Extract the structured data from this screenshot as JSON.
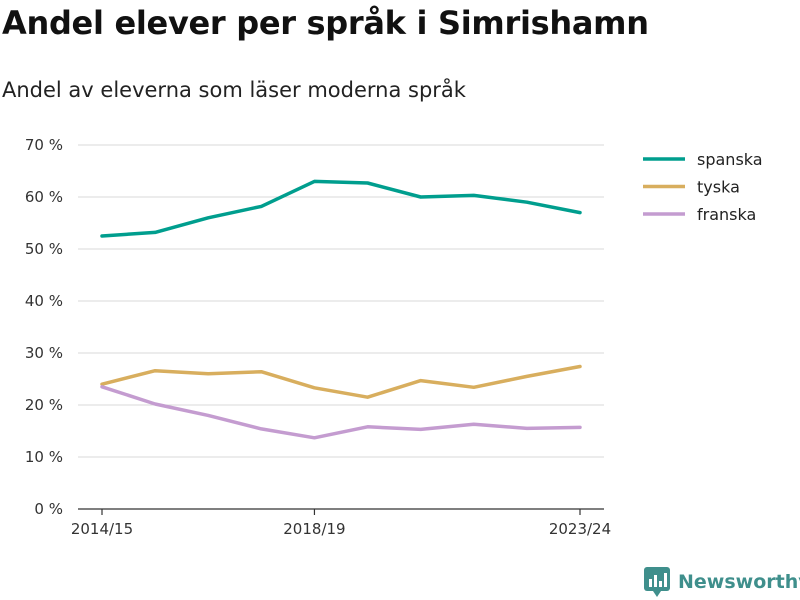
{
  "title": "Andel elever per språk i Simrishamn",
  "subtitle": "Andel av eleverna som läser moderna språk",
  "brand": {
    "name": "Newsworthy",
    "icon": "bar-chart-logo-icon",
    "color": "#3f8f8c"
  },
  "chart_data": {
    "type": "line",
    "x": [
      "2014/15",
      "2015/16",
      "2016/17",
      "2017/18",
      "2018/19",
      "2019/20",
      "2020/21",
      "2021/22",
      "2022/23",
      "2023/24"
    ],
    "x_tick_labels": [
      "2014/15",
      "2018/19",
      "2023/24"
    ],
    "ylim": [
      0,
      70
    ],
    "y_ticks": [
      0,
      10,
      20,
      30,
      40,
      50,
      60,
      70
    ],
    "y_tick_labels": [
      "0 %",
      "10 %",
      "20 %",
      "30 %",
      "40 %",
      "50 %",
      "60 %",
      "70 %"
    ],
    "grid": true,
    "legend_position": "top-right",
    "series": [
      {
        "name": "spanska",
        "color": "#009e8e",
        "values": [
          52.5,
          53.2,
          56.0,
          58.2,
          63.0,
          62.7,
          60.0,
          60.3,
          59.0,
          57.0
        ]
      },
      {
        "name": "tyska",
        "color": "#d8ae5e",
        "values": [
          24.0,
          26.6,
          26.0,
          26.4,
          23.3,
          21.5,
          24.7,
          23.4,
          25.5,
          27.4
        ]
      },
      {
        "name": "franska",
        "color": "#c49cd0",
        "values": [
          23.5,
          20.2,
          18.0,
          15.4,
          13.7,
          15.8,
          15.3,
          16.3,
          15.5,
          15.7
        ]
      }
    ]
  }
}
